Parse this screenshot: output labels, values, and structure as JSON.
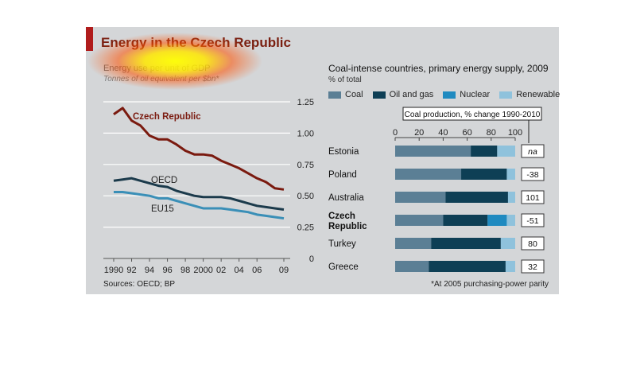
{
  "header": {
    "title": "Energy in the Czech Republic"
  },
  "left_chart": {
    "subtitle": "Energy use per unit of GDP",
    "units": "Tonnes of oil equivalent per $bn*"
  },
  "right_chart": {
    "title": "Coal-intense countries, primary energy supply, 2009",
    "subtitle": "% of total",
    "callout": "Coal production, % change 1990-2010"
  },
  "footer": {
    "source": "Sources: OECD; BP",
    "footnote": "*At 2005 purchasing-power parity"
  },
  "chart_data": [
    {
      "type": "line",
      "title": "Energy use per unit of GDP",
      "ylabel": "Tonnes of oil equivalent per $bn*",
      "ylim": [
        0,
        1.25
      ],
      "yticks": [
        0,
        0.25,
        0.5,
        0.75,
        1.0,
        1.25
      ],
      "ytick_labels": [
        "0",
        "0.25",
        "0.50",
        "0.75",
        "1.00",
        "1.25"
      ],
      "xlim": [
        1990,
        2009
      ],
      "xticks": [
        1990,
        1992,
        1994,
        1996,
        1998,
        2000,
        2002,
        2004,
        2006,
        2009
      ],
      "xtick_labels": [
        "1990",
        "92",
        "94",
        "96",
        "98",
        "2000",
        "02",
        "04",
        "06",
        "09"
      ],
      "x": [
        1990,
        1991,
        1992,
        1993,
        1994,
        1995,
        1996,
        1997,
        1998,
        1999,
        2000,
        2001,
        2002,
        2003,
        2004,
        2005,
        2006,
        2007,
        2008,
        2009
      ],
      "series": [
        {
          "name": "Czech Republic",
          "color": "#7a1a0f",
          "label_bold": true,
          "values": [
            1.15,
            1.2,
            1.1,
            1.06,
            0.98,
            0.95,
            0.95,
            0.91,
            0.86,
            0.83,
            0.83,
            0.82,
            0.78,
            0.75,
            0.72,
            0.68,
            0.64,
            0.61,
            0.56,
            0.55
          ]
        },
        {
          "name": "OECD",
          "color": "#1b3a4b",
          "label_bold": false,
          "values": [
            0.62,
            0.63,
            0.64,
            0.62,
            0.6,
            0.58,
            0.57,
            0.54,
            0.52,
            0.5,
            0.49,
            0.49,
            0.49,
            0.48,
            0.46,
            0.44,
            0.42,
            0.41,
            0.4,
            0.39
          ]
        },
        {
          "name": "EU15",
          "color": "#3a8fb7",
          "label_bold": false,
          "values": [
            0.53,
            0.53,
            0.52,
            0.51,
            0.5,
            0.48,
            0.48,
            0.46,
            0.44,
            0.42,
            0.4,
            0.4,
            0.4,
            0.39,
            0.38,
            0.37,
            0.35,
            0.34,
            0.33,
            0.32
          ]
        }
      ]
    },
    {
      "type": "bar",
      "orientation": "horizontal",
      "stacked": true,
      "title": "Coal-intense countries, primary energy supply, 2009",
      "ylabel": "% of total",
      "xlim": [
        0,
        100
      ],
      "xticks": [
        0,
        20,
        40,
        60,
        80,
        100
      ],
      "categories": [
        "Estonia",
        "Poland",
        "Australia",
        "Czech Republic",
        "Turkey",
        "Greece"
      ],
      "category_bold": [
        false,
        false,
        false,
        true,
        false,
        false
      ],
      "series": [
        {
          "name": "Coal",
          "color": "#5b7f95",
          "values": [
            63,
            55,
            42,
            40,
            30,
            28
          ]
        },
        {
          "name": "Oil and gas",
          "color": "#0e3f55",
          "values": [
            22,
            38,
            52,
            37,
            58,
            64
          ]
        },
        {
          "name": "Nuclear",
          "color": "#1f8ac0",
          "values": [
            0,
            0,
            0,
            16,
            0,
            0
          ]
        },
        {
          "name": "Renewable",
          "color": "#8fc2dc",
          "values": [
            15,
            7,
            6,
            7,
            12,
            8
          ]
        }
      ],
      "annotation_title": "Coal production, % change 1990-2010",
      "annotations": [
        "na",
        "-38",
        "101",
        "-51",
        "80",
        "32"
      ]
    }
  ]
}
